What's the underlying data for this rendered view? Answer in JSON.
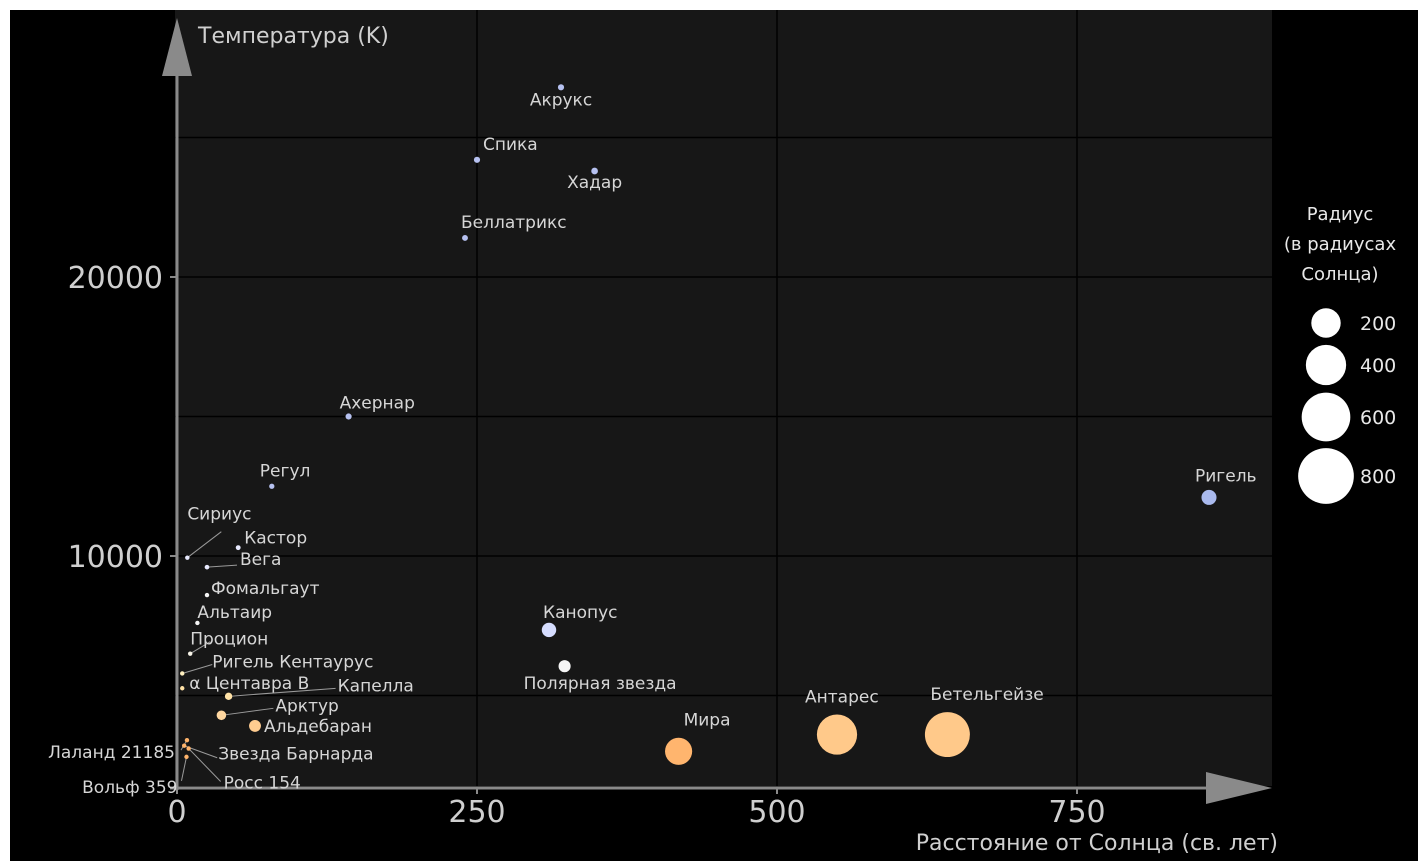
{
  "chart_data": {
    "type": "scatter",
    "title": "",
    "xlabel": "Расстояние от Солнца (св. лет)",
    "ylabel": "Температура (K)",
    "xlim": [
      0,
      910
    ],
    "ylim": [
      2500,
      28000
    ],
    "x_ticks": [
      0,
      250,
      500,
      750
    ],
    "y_ticks": [
      10000,
      20000
    ],
    "grid": true,
    "size_legend": {
      "title": [
        "Радиус",
        "(в радиусах",
        "Солнца)"
      ],
      "entries": [
        200,
        400,
        600,
        800
      ],
      "placement": "right"
    },
    "points": [
      {
        "name": "Акрукс",
        "x": 320,
        "y": 26800,
        "r": 7,
        "color": "#b6c1f0"
      },
      {
        "name": "Спика",
        "x": 250,
        "y": 24200,
        "r": 7,
        "color": "#b6c1f0"
      },
      {
        "name": "Хадар",
        "x": 348,
        "y": 23800,
        "r": 9,
        "color": "#b6c1f0"
      },
      {
        "name": "Беллатрикс",
        "x": 240,
        "y": 21400,
        "r": 6,
        "color": "#b6c1f0"
      },
      {
        "name": "Ахернар",
        "x": 143,
        "y": 15000,
        "r": 7,
        "color": "#b6c1f0"
      },
      {
        "name": "Регул",
        "x": 79,
        "y": 12500,
        "r": 4,
        "color": "#b6c1f0"
      },
      {
        "name": "Ригель",
        "x": 860,
        "y": 12100,
        "r": 78,
        "color": "#aabaee"
      },
      {
        "name": "Сириус",
        "x": 8.6,
        "y": 9940,
        "r": 2,
        "color": "#e8eaff"
      },
      {
        "name": "Кастор",
        "x": 51,
        "y": 10300,
        "r": 3,
        "color": "#e8eaff"
      },
      {
        "name": "Вега",
        "x": 25,
        "y": 9600,
        "r": 2.5,
        "color": "#e8eaff"
      },
      {
        "name": "Фомальгаут",
        "x": 25,
        "y": 8600,
        "r": 2,
        "color": "#f5f5f5"
      },
      {
        "name": "Альтаир",
        "x": 17,
        "y": 7600,
        "r": 2,
        "color": "#f5f5f5"
      },
      {
        "name": "Канопус",
        "x": 310,
        "y": 7350,
        "r": 71,
        "color": "#d6ddff"
      },
      {
        "name": "Процион",
        "x": 11,
        "y": 6500,
        "r": 2,
        "color": "#f7f4e8"
      },
      {
        "name": "Полярная звезда",
        "x": 323,
        "y": 6050,
        "r": 46,
        "color": "#f5f5f5"
      },
      {
        "name": "Ригель Кентаурус",
        "x": 4.37,
        "y": 5790,
        "r": 1.2,
        "color": "#fff0c0"
      },
      {
        "name": "α Центавра B",
        "x": 4.37,
        "y": 5260,
        "r": 1,
        "color": "#ffe2a6"
      },
      {
        "name": "Капелла",
        "x": 43,
        "y": 4970,
        "r": 12,
        "color": "#ffe2a6"
      },
      {
        "name": "Арктур",
        "x": 37,
        "y": 4290,
        "r": 25,
        "color": "#ffd7a0"
      },
      {
        "name": "Альдебаран",
        "x": 65,
        "y": 3910,
        "r": 44,
        "color": "#ffcc90"
      },
      {
        "name": "Мира",
        "x": 418,
        "y": 3000,
        "r": 300,
        "color": "#ffb56e"
      },
      {
        "name": "Антарес",
        "x": 550,
        "y": 3600,
        "r": 700,
        "color": "#ffc98a"
      },
      {
        "name": "Бетельгейзе",
        "x": 642,
        "y": 3600,
        "r": 887,
        "color": "#ffc98a"
      },
      {
        "name": "Лаланд 21185",
        "x": 8.3,
        "y": 3400,
        "r": 0.4,
        "color": "#ffb46b"
      },
      {
        "name": "Звезда Барнарда",
        "x": 6,
        "y": 3200,
        "r": 0.2,
        "color": "#ffb46b"
      },
      {
        "name": "Вольф 359",
        "x": 7.9,
        "y": 2800,
        "r": 0.16,
        "color": "#ffb46b"
      },
      {
        "name": "Росс 154",
        "x": 9.7,
        "y": 3100,
        "r": 0.24,
        "color": "#ffb46b"
      }
    ]
  }
}
